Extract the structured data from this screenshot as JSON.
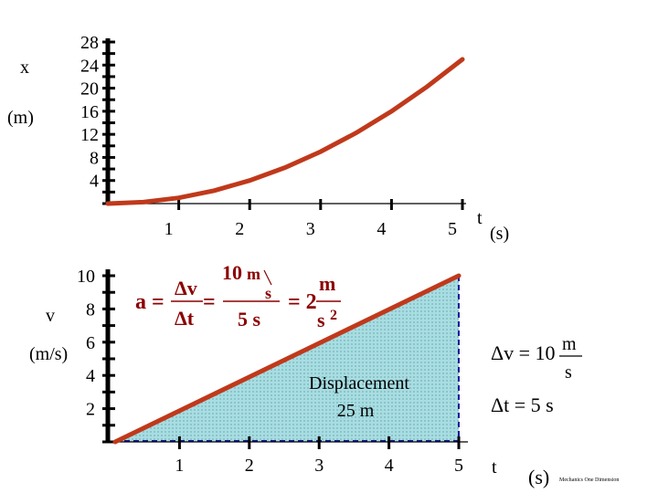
{
  "chart_data": [
    {
      "type": "line",
      "title": "",
      "ylabel_line1": "x",
      "ylabel_line2": "(m)",
      "xlabel": "t",
      "xunit": "(s)",
      "x_ticks": [
        1,
        2,
        3,
        4,
        5
      ],
      "y_ticks": [
        4,
        8,
        12,
        16,
        20,
        24,
        28
      ],
      "xlim": [
        0,
        5
      ],
      "ylim": [
        0,
        28
      ],
      "line_color": "#c0391b",
      "series": [
        {
          "x": [
            0,
            0.5,
            1,
            1.5,
            2,
            2.5,
            3,
            3.5,
            4,
            4.5,
            5
          ],
          "y": [
            0,
            0.25,
            1,
            2.25,
            4,
            6.25,
            9,
            12.25,
            16,
            20.25,
            25
          ]
        }
      ]
    },
    {
      "type": "area",
      "title": "",
      "ylabel_line1": "v",
      "ylabel_line2": "(m/s)",
      "xlabel": "t",
      "xunit": "(s)",
      "x_ticks": [
        1,
        2,
        3,
        4,
        5
      ],
      "y_ticks": [
        2,
        4,
        6,
        8,
        10
      ],
      "xlim": [
        0,
        5
      ],
      "ylim": [
        0,
        10
      ],
      "line_color": "#c0391b",
      "fill_color": "#a8dde2",
      "dash_color": "#1a1aa0",
      "series": [
        {
          "x": [
            0,
            5
          ],
          "y": [
            0,
            10
          ]
        }
      ],
      "annotations": {
        "area_label_line1": "Displacement",
        "area_label_line2": "25 m"
      }
    }
  ],
  "equation": {
    "lhs": "a",
    "eq1": "=",
    "num1": "Δv",
    "den1": "Δt",
    "eq2": "=",
    "num2_value": "10",
    "num2_unit_top": "m",
    "num2_unit_bot": "s",
    "den2": "5 s",
    "eq3": "= 2",
    "unit_top": "m",
    "unit_bot": "s",
    "unit_exp": "2"
  },
  "side_notes": {
    "dv_label": "Δv = 10",
    "dv_unit_top": "m",
    "dv_unit_bot": "s",
    "dt_label": "Δt = 5 s"
  },
  "footer": "Mechanics One Dimension"
}
